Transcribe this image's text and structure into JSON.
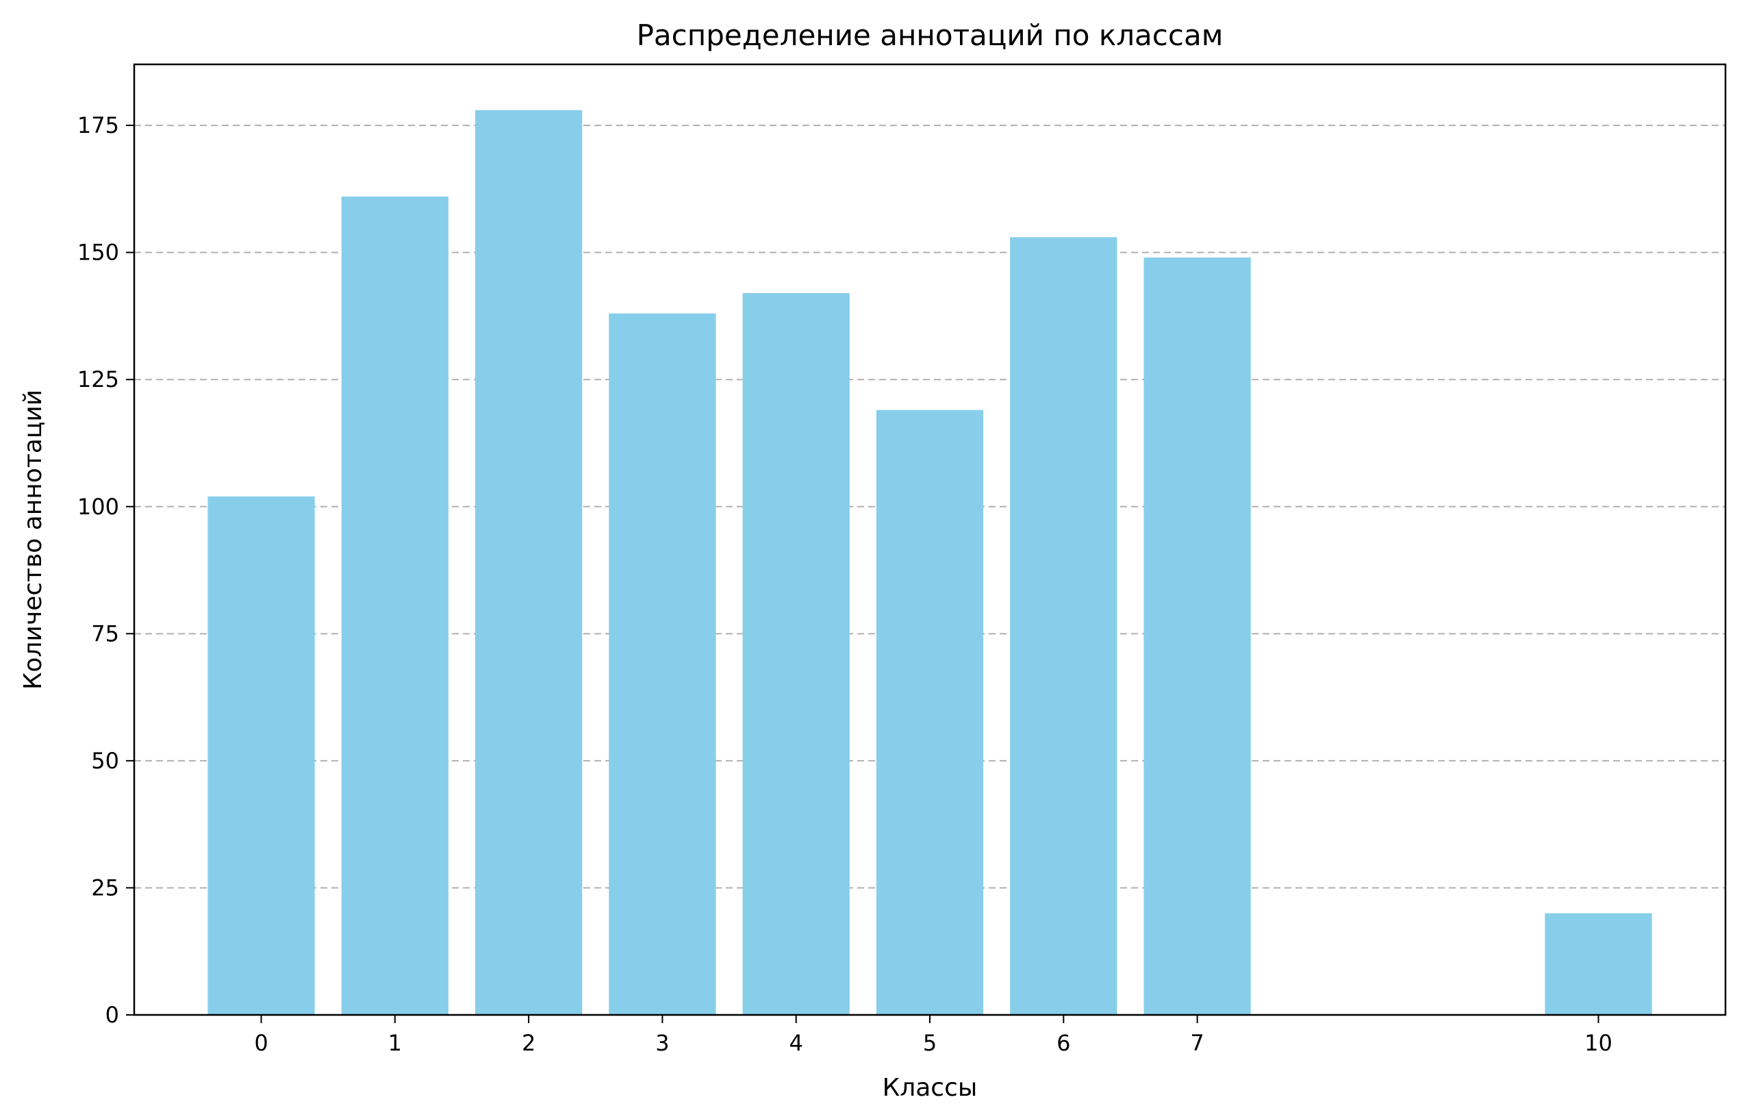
{
  "chart_data": {
    "type": "bar",
    "title": "Распределение аннотаций по классам",
    "xlabel": "Классы",
    "ylabel": "Количество аннотаций",
    "categories": [
      "0",
      "1",
      "2",
      "3",
      "4",
      "5",
      "6",
      "7",
      "10"
    ],
    "x": [
      0,
      1,
      2,
      3,
      4,
      5,
      6,
      7,
      10
    ],
    "values": [
      102,
      161,
      178,
      138,
      142,
      119,
      153,
      149,
      20
    ],
    "xlim": [
      -0.95,
      10.95
    ],
    "ylim": [
      0,
      187
    ],
    "yticks": [
      0,
      25,
      50,
      75,
      100,
      125,
      150,
      175
    ],
    "xticks": [
      0,
      1,
      2,
      3,
      4,
      5,
      6,
      7,
      10
    ],
    "grid": "y",
    "bar_color": "#87ceeb"
  }
}
